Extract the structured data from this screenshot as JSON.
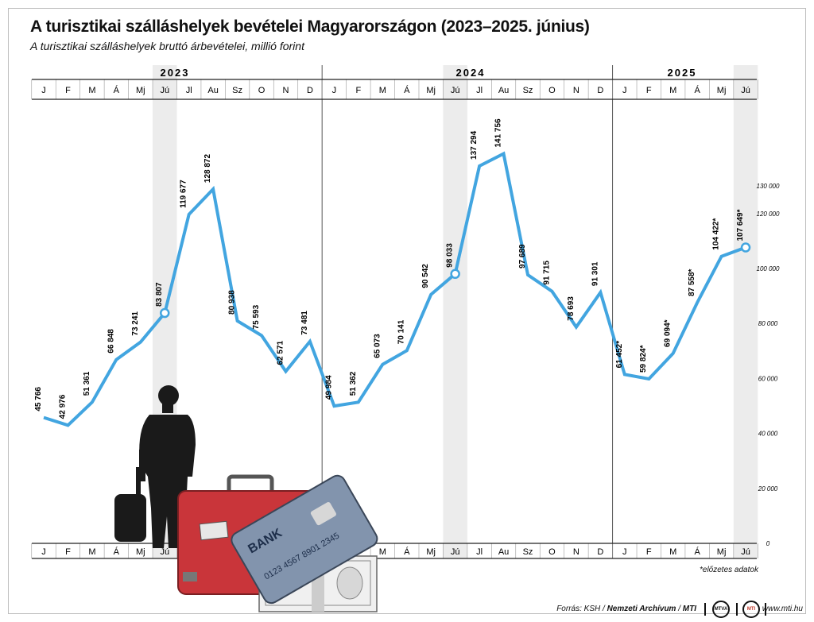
{
  "title": "A turisztikai szálláshelyek bevételei Magyarországon (2023–2025. június)",
  "subtitle": "A turisztikai szálláshelyek bruttó árbevételei, millió forint",
  "note": "*előzetes adatok",
  "source": {
    "prefix": "Forrás: KSH /",
    "archive": "Nemzeti Archívum",
    "slash": "/",
    "mti": "MTI",
    "website": "www.mti.hu"
  },
  "logos": {
    "left": "MTVA",
    "right": "MTI"
  },
  "illustration": {
    "card_bank": "BANK",
    "card_number": "0123 4567 8901 2345"
  },
  "colors": {
    "line": "#42a5e0",
    "highlight_column": "#ececec",
    "axis": "#222222",
    "grid": "#bbbbbb"
  },
  "chart_data": {
    "type": "line",
    "years": [
      "2023",
      "2024",
      "2025"
    ],
    "categories": [
      "J",
      "F",
      "M",
      "Á",
      "Mj",
      "Jú",
      "Jl",
      "Au",
      "Sz",
      "O",
      "N",
      "D",
      "J",
      "F",
      "M",
      "Á",
      "Mj",
      "Jú",
      "Jl",
      "Au",
      "Sz",
      "O",
      "N",
      "D",
      "J",
      "F",
      "M",
      "Á",
      "Mj",
      "Jú"
    ],
    "values": [
      45766,
      42976,
      51361,
      66848,
      73241,
      83807,
      119677,
      128872,
      80938,
      75593,
      62571,
      73481,
      49984,
      51362,
      65073,
      70141,
      90542,
      98033,
      137294,
      141756,
      97689,
      91715,
      78693,
      91301,
      61452,
      59824,
      69094,
      87558,
      104422,
      107649
    ],
    "labels": [
      "45 766",
      "42 976",
      "51 361",
      "66 848",
      "73 241",
      "83 807",
      "119 677",
      "128 872",
      "80 938",
      "75 593",
      "62 571",
      "73 481",
      "49 984",
      "51 362",
      "65 073",
      "70 141",
      "90 542",
      "98 033",
      "137 294",
      "141 756",
      "97 689",
      "91 715",
      "78 693",
      "91 301",
      "61 452*",
      "59 824*",
      "69 094*",
      "87 558*",
      "104 422*",
      "107 649*"
    ],
    "highlighted": [
      5,
      17,
      29
    ],
    "ylim": [
      0,
      150000
    ],
    "yticks": [
      0,
      20000,
      40000,
      60000,
      80000,
      100000,
      120000,
      130000
    ],
    "ytick_labels": [
      "0",
      "20 000",
      "40 000",
      "60 000",
      "80 000",
      "100 000",
      "120 000",
      "130 000"
    ],
    "grid": false
  }
}
